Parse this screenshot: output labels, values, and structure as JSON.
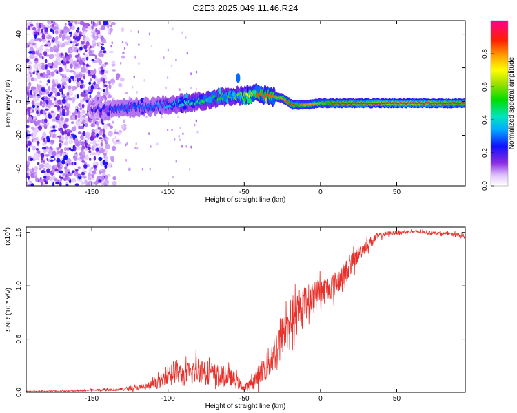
{
  "page": {
    "title": "C2E3.2025.049.11.46.R24"
  },
  "colors": {
    "signal_line": "#e8312b",
    "frame": "#000000"
  },
  "chart_data": [
    {
      "type": "heatmap",
      "title": "C2E3.2025.049.11.46.R24",
      "xlabel": "Height of straight line (km)",
      "ylabel": "Frequency (Hz)",
      "xlim": [
        -193,
        95
      ],
      "ylim": [
        -50,
        48
      ],
      "xticks": [
        -150,
        -100,
        -50,
        0,
        50
      ],
      "xtick_labels": [
        "-150",
        "-100",
        "-50",
        "0",
        "50"
      ],
      "yticks": [
        -40,
        -20,
        0,
        20,
        40
      ],
      "ytick_labels": [
        "-40",
        "-20",
        "0",
        "20",
        "40"
      ],
      "colorbar": {
        "label": "Normalized spectral amplitude",
        "range": [
          0,
          1
        ],
        "ticks": [
          0.0,
          0.2,
          0.4,
          0.6,
          0.8
        ],
        "tick_labels": [
          "0.0",
          "0.2",
          "0.4",
          "0.6",
          "0.8"
        ]
      },
      "ridge": {
        "height_km": [
          -150,
          -130,
          -110,
          -90,
          -75,
          -60,
          -50,
          -42,
          -35,
          -25,
          -18,
          -10,
          0,
          10,
          30,
          60,
          95
        ],
        "frequency_hz": [
          -5,
          -4,
          -3,
          -1,
          1,
          3,
          3.5,
          5,
          3.5,
          2,
          -2,
          -2,
          -1,
          -1,
          -1,
          -1,
          -1
        ],
        "amplitude": [
          0.2,
          0.3,
          0.3,
          0.4,
          0.5,
          0.55,
          0.6,
          0.85,
          0.85,
          0.8,
          0.9,
          0.8,
          0.8,
          0.9,
          0.95,
          1.0,
          0.9
        ]
      },
      "noise_region": {
        "height_km": [
          -193,
          -140
        ],
        "frequency_hz": [
          -50,
          48
        ]
      }
    },
    {
      "type": "line",
      "xlabel": "Height of straight line (km)",
      "ylabel": "SNR (10 * v/v)",
      "yscale_label": "(x10",
      "yscale_exponent": "4",
      "xlim": [
        -193,
        95
      ],
      "ylim": [
        0,
        1.55
      ],
      "xticks": [
        -150,
        -100,
        -50,
        0,
        50
      ],
      "xtick_labels": [
        "-150",
        "-100",
        "-50",
        "0",
        "50"
      ],
      "yticks": [
        0.0,
        0.5,
        1.0,
        1.5
      ],
      "ytick_labels": [
        "0.0",
        "0.5",
        "1.0",
        "1.5"
      ],
      "series": [
        {
          "name": "SNR",
          "x": [
            -193,
            -170,
            -150,
            -130,
            -115,
            -105,
            -100,
            -95,
            -90,
            -85,
            -80,
            -75,
            -70,
            -65,
            -60,
            -55,
            -50,
            -45,
            -40,
            -35,
            -30,
            -25,
            -20,
            -15,
            -10,
            -5,
            0,
            5,
            10,
            15,
            20,
            25,
            30,
            35,
            40,
            45,
            50,
            60,
            70,
            80,
            90,
            95
          ],
          "y": [
            0.01,
            0.01,
            0.02,
            0.03,
            0.05,
            0.1,
            0.18,
            0.2,
            0.15,
            0.18,
            0.22,
            0.2,
            0.17,
            0.15,
            0.15,
            0.1,
            0.04,
            0.08,
            0.18,
            0.25,
            0.38,
            0.55,
            0.68,
            0.72,
            0.85,
            0.88,
            0.95,
            0.97,
            1.02,
            1.1,
            1.2,
            1.3,
            1.38,
            1.44,
            1.48,
            1.49,
            1.5,
            1.51,
            1.5,
            1.49,
            1.48,
            1.46
          ],
          "noise_amplitude": [
            0.005,
            0.008,
            0.01,
            0.015,
            0.03,
            0.06,
            0.1,
            0.12,
            0.1,
            0.12,
            0.13,
            0.12,
            0.11,
            0.1,
            0.09,
            0.07,
            0.03,
            0.06,
            0.1,
            0.15,
            0.18,
            0.2,
            0.2,
            0.18,
            0.16,
            0.15,
            0.14,
            0.12,
            0.12,
            0.11,
            0.1,
            0.08,
            0.06,
            0.04,
            0.03,
            0.02,
            0.02,
            0.015,
            0.015,
            0.015,
            0.02,
            0.02
          ]
        }
      ]
    }
  ]
}
